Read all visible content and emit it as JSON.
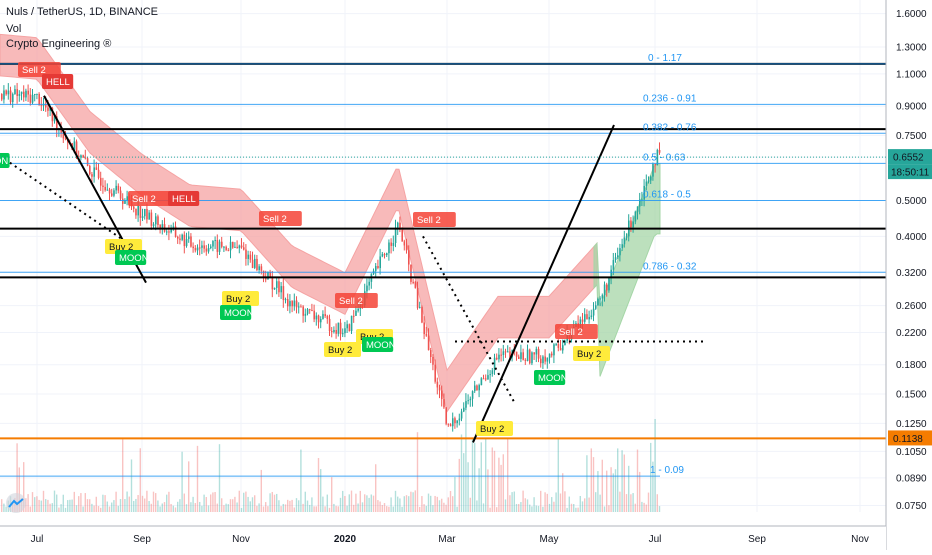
{
  "header": {
    "symbol_line": "Nuls / TetherUS, 1D, BINANCE",
    "vol_label": "Vol",
    "indicator_label": "Crypto Engineering ®"
  },
  "price_axis": {
    "ticks": [
      "1.6000",
      "1.3000",
      "1.1000",
      "0.9000",
      "0.7500",
      "0.6552",
      "0.5000",
      "0.4000",
      "0.3200",
      "0.2600",
      "0.2200",
      "0.1800",
      "0.1500",
      "0.1250",
      "0.1050",
      "0.0890",
      "0.0750"
    ],
    "current_price": "0.6552",
    "countdown": "18:50:11",
    "marked_price": "0.1138"
  },
  "time_axis": {
    "labels": [
      "Jul",
      "Sep",
      "Nov",
      "2020",
      "Mar",
      "May",
      "Jul",
      "Sep",
      "Nov"
    ]
  },
  "fib_labels": [
    "0 - 1.17",
    "0.236 - 0.91",
    "0.382 - 0.76",
    "0.5 - 0.63",
    "0.618 - 0.5",
    "0.786 - 0.32",
    "1 - 0.09"
  ],
  "signals": [
    {
      "text": "Sell 2",
      "kind": "sell"
    },
    {
      "text": "HELL",
      "kind": "hell"
    },
    {
      "text": "ON",
      "kind": "moon"
    },
    {
      "text": "Sell 2",
      "kind": "sell"
    },
    {
      "text": "HELL",
      "kind": "hell"
    },
    {
      "text": "Buy 2",
      "kind": "buy"
    },
    {
      "text": "MOON",
      "kind": "moon"
    },
    {
      "text": "Buy 2",
      "kind": "buy"
    },
    {
      "text": "MOON",
      "kind": "moon"
    },
    {
      "text": "Sell 2",
      "kind": "sell"
    },
    {
      "text": "Sell 2",
      "kind": "sell"
    },
    {
      "text": "Buy 2",
      "kind": "buy"
    },
    {
      "text": "Buy 2",
      "kind": "buy"
    },
    {
      "text": "MOON",
      "kind": "moon"
    },
    {
      "text": "Sell 2",
      "kind": "sell"
    },
    {
      "text": "Buy 2",
      "kind": "buy"
    },
    {
      "text": "Sell 2",
      "kind": "sell"
    },
    {
      "text": "Buy 2",
      "kind": "buy"
    },
    {
      "text": "MOON",
      "kind": "moon"
    }
  ],
  "colors": {
    "up": "#26a69a",
    "down": "#ef5350",
    "cloud_bear": "#f5a3a3",
    "cloud_bull": "#a5d6a7",
    "fib": "#2196f3",
    "sell": "#f44336",
    "buy": "#ffeb3b",
    "moon": "#00c853",
    "orange": "#f57c00"
  },
  "chart_data": {
    "type": "candlestick",
    "title": "Nuls / TetherUS, 1D, BINANCE",
    "price_scale": "log",
    "ylim": [
      0.072,
      1.72
    ],
    "x_range": [
      "Jun 2019",
      "Nov 2020"
    ],
    "price_path": [
      [
        "Jun 2019",
        0.98
      ],
      [
        "Jul 2019",
        0.95
      ],
      [
        "Aug 2019",
        0.6
      ],
      [
        "Sep 2019",
        0.46
      ],
      [
        "Oct 2019",
        0.38
      ],
      [
        "Nov 2019",
        0.37
      ],
      [
        "Dec 2019",
        0.26
      ],
      [
        "Jan 2020",
        0.22
      ],
      [
        "Feb 2020",
        0.43
      ],
      [
        "Mar 2020",
        0.12
      ],
      [
        "Apr 2020",
        0.19
      ],
      [
        "May 2020",
        0.19
      ],
      [
        "Jun 2020",
        0.27
      ],
      [
        "Jul 2020",
        0.6552
      ]
    ],
    "horizontal_levels": [
      1.17,
      0.78,
      0.42,
      0.31
    ],
    "marked_level": 0.1138,
    "fib_levels": [
      {
        "ratio": 0,
        "price": 1.17
      },
      {
        "ratio": 0.236,
        "price": 0.91
      },
      {
        "ratio": 0.382,
        "price": 0.76
      },
      {
        "ratio": 0.5,
        "price": 0.63
      },
      {
        "ratio": 0.618,
        "price": 0.5
      },
      {
        "ratio": 0.786,
        "price": 0.32
      },
      {
        "ratio": 1,
        "price": 0.09
      }
    ],
    "dotted_support": 0.208,
    "last_price": 0.6552,
    "grid": true
  }
}
